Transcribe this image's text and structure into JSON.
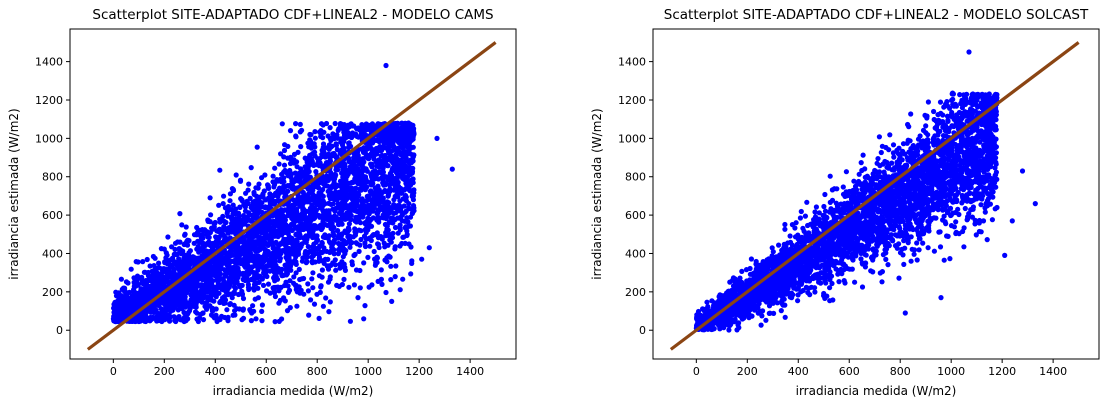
{
  "chart_data": [
    {
      "type": "scatter",
      "title": "Scatterplot SITE-ADAPTADO CDF+LINEAL2 - MODELO CAMS",
      "xlabel": "irradiancia medida (W/m2)",
      "ylabel": "irradiancia estimada (W/m2)",
      "xlim": [
        -170,
        1580
      ],
      "ylim": [
        -150,
        1570
      ],
      "xticks": [
        0,
        200,
        400,
        600,
        800,
        1000,
        1200,
        1400
      ],
      "yticks": [
        0,
        200,
        400,
        600,
        800,
        1000,
        1200,
        1400
      ],
      "grid": false,
      "marker_color": "#0000ff",
      "reference_line": {
        "x": [
          -100,
          1500
        ],
        "y": [
          -100,
          1500
        ],
        "color": "#8b4513"
      },
      "density_note": "points concentrated between measured 0-1200 and estimated 50-1100",
      "outliers": [
        [
          1070,
          1380
        ],
        [
          1330,
          840
        ],
        [
          1210,
          370
        ],
        [
          960,
          170
        ],
        [
          1270,
          1000
        ],
        [
          1240,
          430
        ]
      ],
      "scatter_seed": 11,
      "scatter_n": 4200
    },
    {
      "type": "scatter",
      "title": "Scatterplot SITE-ADAPTADO CDF+LINEAL2 - MODELO SOLCAST",
      "xlabel": "irradiancia medida (W/m2)",
      "ylabel": "irradiancia estimada (W/m2)",
      "xlim": [
        -170,
        1580
      ],
      "ylim": [
        -150,
        1570
      ],
      "xticks": [
        0,
        200,
        400,
        600,
        800,
        1000,
        1200,
        1400
      ],
      "yticks": [
        0,
        200,
        400,
        600,
        800,
        1000,
        1200,
        1400
      ],
      "grid": false,
      "marker_color": "#0000ff",
      "reference_line": {
        "x": [
          -100,
          1500
        ],
        "y": [
          -100,
          1500
        ],
        "color": "#8b4513"
      },
      "density_note": "points concentrated along diagonal, measured 0-1200, estimated 0-1250",
      "outliers": [
        [
          1070,
          1450
        ],
        [
          1330,
          660
        ],
        [
          1210,
          390
        ],
        [
          960,
          170
        ],
        [
          1280,
          830
        ],
        [
          1240,
          570
        ],
        [
          820,
          90
        ]
      ],
      "scatter_seed": 23,
      "scatter_n": 4200
    }
  ]
}
